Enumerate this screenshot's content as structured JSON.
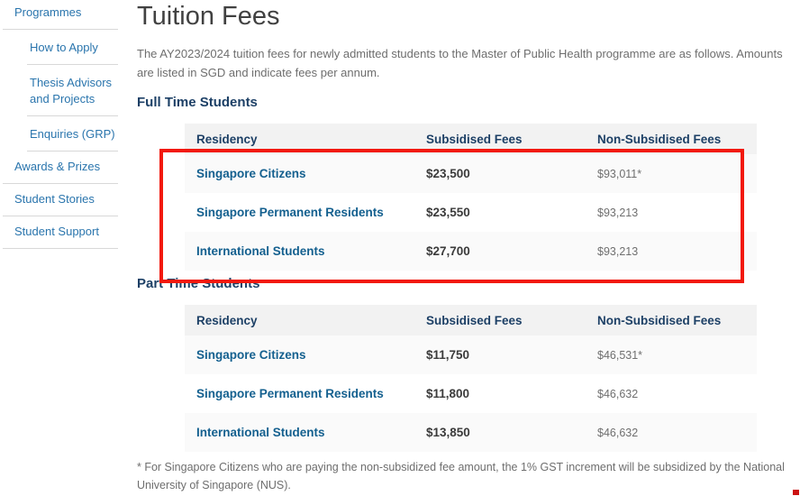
{
  "sidebar": {
    "items": [
      {
        "label": "Programmes",
        "level": 1
      },
      {
        "label": "How to Apply",
        "level": 2
      },
      {
        "label": "Thesis Advisors and Projects",
        "level": 2
      },
      {
        "label": "Enquiries (GRP)",
        "level": 2
      },
      {
        "label": "Awards & Prizes",
        "level": 1
      },
      {
        "label": "Student Stories",
        "level": 1
      },
      {
        "label": "Student Support",
        "level": 1
      }
    ]
  },
  "page": {
    "title": "Tuition Fees",
    "intro": "The AY2023/2024 tuition fees for newly admitted students to the Master of Public Health programme are as follows. Amounts are listed in SGD and indicate fees per annum.",
    "footnote": "* For Singapore Citizens who are paying the non-subsidized fee amount, the 1% GST increment will be subsidized by the National University of Singapore (NUS)."
  },
  "sections": [
    {
      "heading": "Full Time Students",
      "table": {
        "headers": [
          "Residency",
          "Subsidised Fees",
          "Non-Subsidised Fees"
        ],
        "rows": [
          {
            "residency": "Singapore Citizens",
            "subsidised": "$23,500",
            "non_subsidised": "$93,011*"
          },
          {
            "residency": "Singapore Permanent Residents",
            "subsidised": "$23,550",
            "non_subsidised": "$93,213"
          },
          {
            "residency": "International Students",
            "subsidised": "$27,700",
            "non_subsidised": "$93,213"
          }
        ]
      }
    },
    {
      "heading": "Part Time Students",
      "table": {
        "headers": [
          "Residency",
          "Subsidised Fees",
          "Non-Subsidised Fees"
        ],
        "rows": [
          {
            "residency": "Singapore Citizens",
            "subsidised": "$11,750",
            "non_subsidised": "$46,531*"
          },
          {
            "residency": "Singapore Permanent Residents",
            "subsidised": "$11,800",
            "non_subsidised": "$46,632"
          },
          {
            "residency": "International Students",
            "subsidised": "$13,850",
            "non_subsidised": "$46,632"
          }
        ]
      }
    }
  ],
  "annotation": {
    "highlight_color": "#f2190d",
    "highlighted_region": "full-time-students-table-rows"
  },
  "colors": {
    "sidebar_link": "#2a75ad",
    "heading_navy": "#1d4066",
    "residency_blue": "#14608f",
    "table_header_bg": "#f2f2f2",
    "row_stripe": "#fafafa",
    "body_text": "#6e6e6e"
  }
}
